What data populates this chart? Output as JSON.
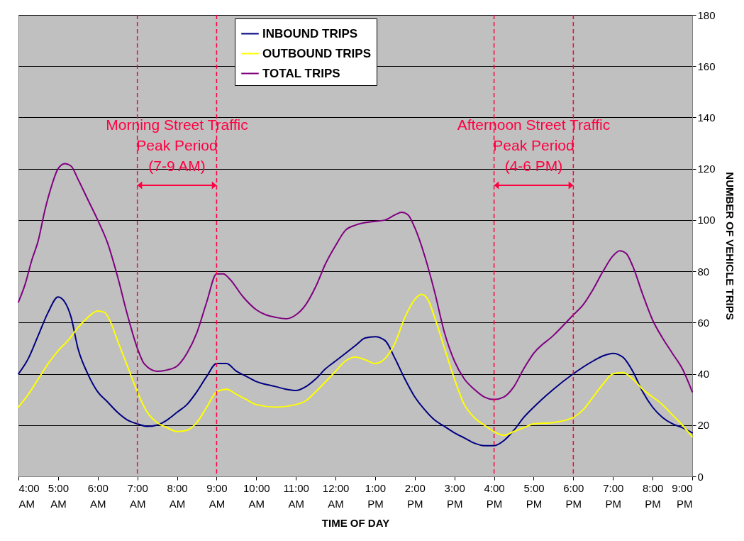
{
  "chart_data": {
    "type": "line",
    "xlabel": "TIME OF DAY",
    "ylabel": "NUMBER OF VEHICLE TRIPS",
    "xlim": [
      4,
      21
    ],
    "xticks": [
      {
        "value": 4,
        "label": "4:00 AM"
      },
      {
        "value": 5,
        "label": "5:00 AM"
      },
      {
        "value": 6,
        "label": "6:00 AM"
      },
      {
        "value": 7,
        "label": "7:00 AM"
      },
      {
        "value": 8,
        "label": "8:00 AM"
      },
      {
        "value": 9,
        "label": "9:00 AM"
      },
      {
        "value": 10,
        "label": "10:00 AM"
      },
      {
        "value": 11,
        "label": "11:00 AM"
      },
      {
        "value": 12,
        "label": "12:00 AM"
      },
      {
        "value": 13,
        "label": "1:00 PM"
      },
      {
        "value": 14,
        "label": "2:00 PM"
      },
      {
        "value": 15,
        "label": "3:00 PM"
      },
      {
        "value": 16,
        "label": "4:00 PM"
      },
      {
        "value": 17,
        "label": "5:00 PM"
      },
      {
        "value": 18,
        "label": "6:00 PM"
      },
      {
        "value": 19,
        "label": "7:00 PM"
      },
      {
        "value": 20,
        "label": "8:00 PM"
      },
      {
        "value": 21,
        "label": "9:00 PM"
      }
    ],
    "ylim": [
      0,
      180
    ],
    "yticks": [
      0,
      20,
      40,
      60,
      80,
      100,
      120,
      140,
      160,
      180
    ],
    "grid": "y",
    "legend": "top",
    "marker": "none",
    "line_style": "solid",
    "series": [
      {
        "name": "INBOUND TRIPS",
        "color": "#000080",
        "x": [
          4,
          4.25,
          4.5,
          4.75,
          5,
          5.17,
          5.33,
          5.5,
          5.75,
          6,
          6.25,
          6.5,
          6.75,
          7,
          7.25,
          7.5,
          7.75,
          8,
          8.25,
          8.5,
          8.75,
          9,
          9.25,
          9.5,
          9.75,
          10,
          10.5,
          10.75,
          11,
          11.25,
          11.5,
          11.75,
          12,
          12.25,
          12.5,
          12.75,
          13,
          13.25,
          13.5,
          13.75,
          14,
          14.25,
          14.5,
          14.75,
          15,
          15.25,
          15.5,
          15.75,
          16,
          16.25,
          16.5,
          16.75,
          17,
          17.5,
          18,
          18.5,
          18.75,
          19,
          19.25,
          19.5,
          19.75,
          20,
          20.25,
          20.5,
          20.75,
          21
        ],
        "values": [
          40,
          46,
          55,
          64,
          70,
          68,
          62,
          50,
          40,
          33,
          29,
          25,
          22,
          20.5,
          19.5,
          20,
          22,
          25,
          28,
          33,
          39,
          44,
          44,
          41,
          39,
          37,
          35,
          34,
          33.5,
          35,
          38,
          42,
          45,
          48,
          51,
          54,
          54.5,
          53,
          46,
          38,
          31,
          26,
          22,
          19.5,
          17,
          15,
          13,
          12,
          12,
          14,
          18,
          23,
          27,
          34,
          40,
          45,
          47,
          48,
          46.5,
          41,
          33,
          27,
          23,
          20.5,
          19,
          17
        ]
      },
      {
        "name": "OUTBOUND TRIPS",
        "color": "#ffff00",
        "x": [
          4,
          4.25,
          4.5,
          4.75,
          5,
          5.25,
          5.5,
          5.75,
          6,
          6.17,
          6.33,
          6.5,
          6.75,
          7,
          7.25,
          7.5,
          7.75,
          8,
          8.25,
          8.5,
          8.75,
          9,
          9.25,
          9.5,
          9.75,
          10,
          10.5,
          11,
          11.25,
          11.5,
          12,
          12.25,
          12.5,
          12.75,
          13,
          13.25,
          13.5,
          13.75,
          14,
          14.17,
          14.33,
          14.5,
          14.75,
          15,
          15.25,
          15.5,
          15.75,
          16,
          16.25,
          16.5,
          16.75,
          17,
          17.5,
          18,
          18.25,
          18.5,
          18.75,
          19,
          19.25,
          19.5,
          19.75,
          20,
          20.25,
          20.5,
          20.75,
          21
        ],
        "values": [
          27,
          32,
          38,
          44,
          49,
          53,
          58,
          62,
          64.5,
          64,
          60,
          53,
          43,
          33,
          25,
          21,
          19,
          17.5,
          18,
          21,
          27,
          33,
          34,
          32,
          30,
          28,
          27,
          28,
          29.5,
          33,
          41,
          45,
          46.5,
          45.5,
          44,
          46,
          52,
          62,
          69,
          71,
          69,
          62,
          50,
          38,
          28,
          23,
          20,
          17.5,
          16,
          17.5,
          19,
          20.5,
          21,
          23,
          26,
          31,
          36,
          40,
          40.5,
          38,
          34,
          31,
          28,
          24,
          20,
          15.5
        ]
      },
      {
        "name": "TOTAL TRIPS",
        "color": "#800080",
        "x": [
          4,
          4.17,
          4.33,
          4.5,
          4.67,
          4.83,
          5,
          5.17,
          5.33,
          5.5,
          5.75,
          6,
          6.25,
          6.5,
          6.75,
          7,
          7.17,
          7.5,
          7.75,
          8,
          8.25,
          8.5,
          8.75,
          9,
          9.17,
          9.33,
          9.67,
          10,
          10.5,
          10.75,
          11,
          11.25,
          11.5,
          11.75,
          12,
          12.25,
          12.5,
          12.75,
          13,
          13.25,
          13.5,
          13.67,
          13.83,
          14,
          14.25,
          14.5,
          14.75,
          15,
          15.25,
          15.5,
          15.75,
          16,
          16.25,
          16.5,
          16.75,
          17,
          17.5,
          18,
          18.25,
          18.5,
          18.75,
          19,
          19.17,
          19.33,
          19.5,
          19.75,
          20,
          20.25,
          20.5,
          20.75,
          21
        ],
        "values": [
          68,
          75,
          84,
          92,
          104,
          113,
          120,
          122,
          121,
          116,
          108,
          100,
          91,
          78,
          63,
          50,
          44,
          41,
          41.5,
          43,
          48,
          56,
          68,
          79,
          79,
          77,
          70,
          65,
          62,
          61.5,
          63,
          67,
          74,
          83,
          90,
          96,
          98,
          99,
          99.5,
          100,
          102,
          103,
          102,
          97,
          86,
          72,
          56,
          45,
          38,
          34,
          31,
          30,
          31,
          35,
          42,
          48,
          55,
          63,
          67,
          73,
          80,
          86,
          88,
          87,
          82,
          71,
          61,
          54,
          48,
          42,
          33
        ]
      }
    ],
    "ref_lines": [
      {
        "axis": "x",
        "value": 7,
        "color": "#ff0040",
        "line_style": "dashed"
      },
      {
        "axis": "x",
        "value": 9,
        "color": "#ff0040",
        "line_style": "dashed"
      },
      {
        "axis": "x",
        "value": 16,
        "color": "#ff0040",
        "line_style": "dashed"
      },
      {
        "axis": "x",
        "value": 18,
        "color": "#ff0040",
        "line_style": "dashed"
      }
    ],
    "annotations": [
      "Morning Street Traffic\nPeak Period\n(7-9 AM)",
      "Afternoon Street Traffic\nPeak Period\n(4-6 PM)"
    ]
  }
}
